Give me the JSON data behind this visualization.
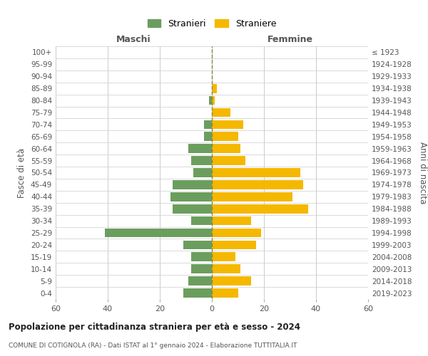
{
  "age_groups": [
    "0-4",
    "5-9",
    "10-14",
    "15-19",
    "20-24",
    "25-29",
    "30-34",
    "35-39",
    "40-44",
    "45-49",
    "50-54",
    "55-59",
    "60-64",
    "65-69",
    "70-74",
    "75-79",
    "80-84",
    "85-89",
    "90-94",
    "95-99",
    "100+"
  ],
  "birth_years": [
    "2019-2023",
    "2014-2018",
    "2009-2013",
    "2004-2008",
    "1999-2003",
    "1994-1998",
    "1989-1993",
    "1984-1988",
    "1979-1983",
    "1974-1978",
    "1969-1973",
    "1964-1968",
    "1959-1963",
    "1954-1958",
    "1949-1953",
    "1944-1948",
    "1939-1943",
    "1934-1938",
    "1929-1933",
    "1924-1928",
    "≤ 1923"
  ],
  "maschi": [
    11,
    9,
    8,
    8,
    11,
    41,
    8,
    15,
    16,
    15,
    7,
    8,
    9,
    3,
    3,
    0,
    1,
    0,
    0,
    0,
    0
  ],
  "femmine": [
    10,
    15,
    11,
    9,
    17,
    19,
    15,
    37,
    31,
    35,
    34,
    13,
    11,
    10,
    12,
    7,
    1,
    2,
    0,
    0,
    0
  ],
  "male_color": "#6b9e5e",
  "female_color": "#f5b800",
  "grid_color": "#cccccc",
  "center_line_color": "#888844",
  "title": "Popolazione per cittadinanza straniera per età e sesso - 2024",
  "subtitle": "COMUNE DI COTIGNOLA (RA) - Dati ISTAT al 1° gennaio 2024 - Elaborazione TUTTITALIA.IT",
  "xlabel_left": "Maschi",
  "xlabel_right": "Femmine",
  "ylabel_left": "Fasce di età",
  "ylabel_right": "Anni di nascita",
  "legend_male": "Stranieri",
  "legend_female": "Straniere",
  "xlim": 60,
  "bar_height": 0.75,
  "background_color": "#ffffff"
}
